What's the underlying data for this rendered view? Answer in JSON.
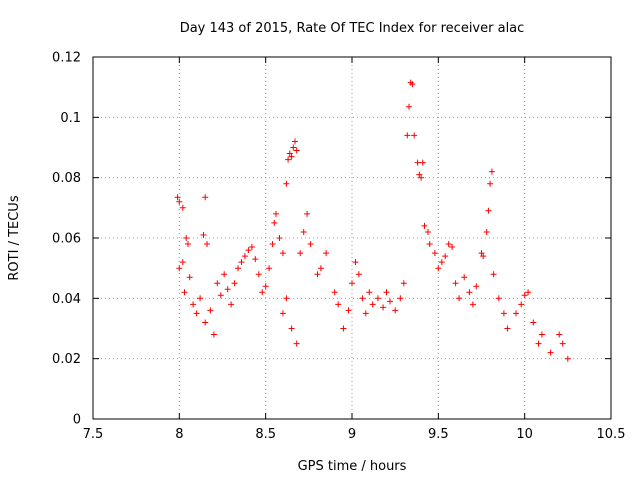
{
  "chart_data": {
    "type": "scatter",
    "title": "Day 143 of 2015, Rate Of TEC Index for receiver alac",
    "xlabel": "GPS time / hours",
    "ylabel": "ROTI / TECUs",
    "xlim": [
      7.5,
      10.5
    ],
    "ylim": [
      0,
      0.12
    ],
    "xticks": [
      7.5,
      8,
      8.5,
      9,
      9.5,
      10,
      10.5
    ],
    "xtick_labels": [
      "7.5",
      "8",
      "8.5",
      "9",
      "9.5",
      "10",
      "10.5"
    ],
    "yticks": [
      0,
      0.02,
      0.04,
      0.06,
      0.08,
      0.1,
      0.12
    ],
    "ytick_labels": [
      "0",
      "0.02",
      "0.04",
      "0.06",
      "0.08",
      "0.1",
      "0.12"
    ],
    "grid": true,
    "marker": "+",
    "color": "#ff0000",
    "series": [
      {
        "name": "ROTI",
        "points": [
          [
            7.99,
            0.0735
          ],
          [
            8.0,
            0.072
          ],
          [
            8.02,
            0.07
          ],
          [
            8.0,
            0.05
          ],
          [
            8.02,
            0.052
          ],
          [
            8.04,
            0.06
          ],
          [
            8.05,
            0.058
          ],
          [
            8.03,
            0.042
          ],
          [
            8.06,
            0.047
          ],
          [
            8.08,
            0.038
          ],
          [
            8.1,
            0.035
          ],
          [
            8.12,
            0.04
          ],
          [
            8.15,
            0.0735
          ],
          [
            8.14,
            0.061
          ],
          [
            8.16,
            0.058
          ],
          [
            8.15,
            0.032
          ],
          [
            8.18,
            0.036
          ],
          [
            8.2,
            0.028
          ],
          [
            8.22,
            0.045
          ],
          [
            8.24,
            0.041
          ],
          [
            8.26,
            0.048
          ],
          [
            8.28,
            0.043
          ],
          [
            8.3,
            0.038
          ],
          [
            8.32,
            0.045
          ],
          [
            8.34,
            0.05
          ],
          [
            8.36,
            0.052
          ],
          [
            8.38,
            0.054
          ],
          [
            8.4,
            0.056
          ],
          [
            8.42,
            0.057
          ],
          [
            8.44,
            0.053
          ],
          [
            8.46,
            0.048
          ],
          [
            8.48,
            0.042
          ],
          [
            8.5,
            0.044
          ],
          [
            8.52,
            0.05
          ],
          [
            8.54,
            0.058
          ],
          [
            8.55,
            0.065
          ],
          [
            8.56,
            0.068
          ],
          [
            8.58,
            0.06
          ],
          [
            8.6,
            0.055
          ],
          [
            8.62,
            0.078
          ],
          [
            8.63,
            0.086
          ],
          [
            8.64,
            0.088
          ],
          [
            8.65,
            0.087
          ],
          [
            8.66,
            0.09
          ],
          [
            8.67,
            0.092
          ],
          [
            8.68,
            0.089
          ],
          [
            8.7,
            0.055
          ],
          [
            8.72,
            0.062
          ],
          [
            8.74,
            0.068
          ],
          [
            8.76,
            0.058
          ],
          [
            8.6,
            0.035
          ],
          [
            8.62,
            0.04
          ],
          [
            8.65,
            0.03
          ],
          [
            8.68,
            0.025
          ],
          [
            8.8,
            0.048
          ],
          [
            8.82,
            0.05
          ],
          [
            8.85,
            0.055
          ],
          [
            8.9,
            0.042
          ],
          [
            8.92,
            0.038
          ],
          [
            8.95,
            0.03
          ],
          [
            8.98,
            0.036
          ],
          [
            9.0,
            0.045
          ],
          [
            9.02,
            0.052
          ],
          [
            9.04,
            0.048
          ],
          [
            9.06,
            0.04
          ],
          [
            9.08,
            0.035
          ],
          [
            9.1,
            0.042
          ],
          [
            9.12,
            0.038
          ],
          [
            9.15,
            0.04
          ],
          [
            9.18,
            0.037
          ],
          [
            9.2,
            0.042
          ],
          [
            9.22,
            0.039
          ],
          [
            9.25,
            0.036
          ],
          [
            9.28,
            0.04
          ],
          [
            9.3,
            0.045
          ],
          [
            9.32,
            0.094
          ],
          [
            9.33,
            0.1035
          ],
          [
            9.34,
            0.1115
          ],
          [
            9.35,
            0.111
          ],
          [
            9.36,
            0.094
          ],
          [
            9.38,
            0.085
          ],
          [
            9.39,
            0.081
          ],
          [
            9.4,
            0.08
          ],
          [
            9.41,
            0.085
          ],
          [
            9.42,
            0.064
          ],
          [
            9.44,
            0.062
          ],
          [
            9.45,
            0.058
          ],
          [
            9.48,
            0.055
          ],
          [
            9.5,
            0.05
          ],
          [
            9.52,
            0.052
          ],
          [
            9.54,
            0.054
          ],
          [
            9.56,
            0.058
          ],
          [
            9.58,
            0.057
          ],
          [
            9.6,
            0.045
          ],
          [
            9.62,
            0.04
          ],
          [
            9.65,
            0.047
          ],
          [
            9.68,
            0.042
          ],
          [
            9.7,
            0.038
          ],
          [
            9.72,
            0.044
          ],
          [
            9.75,
            0.055
          ],
          [
            9.76,
            0.054
          ],
          [
            9.78,
            0.062
          ],
          [
            9.79,
            0.069
          ],
          [
            9.8,
            0.078
          ],
          [
            9.81,
            0.082
          ],
          [
            9.82,
            0.048
          ],
          [
            9.85,
            0.04
          ],
          [
            9.88,
            0.035
          ],
          [
            9.9,
            0.03
          ],
          [
            9.95,
            0.035
          ],
          [
            9.98,
            0.038
          ],
          [
            10.0,
            0.041
          ],
          [
            10.02,
            0.042
          ],
          [
            10.05,
            0.032
          ],
          [
            10.08,
            0.025
          ],
          [
            10.1,
            0.028
          ],
          [
            10.15,
            0.022
          ],
          [
            10.2,
            0.028
          ],
          [
            10.22,
            0.025
          ],
          [
            10.25,
            0.02
          ]
        ]
      }
    ]
  }
}
